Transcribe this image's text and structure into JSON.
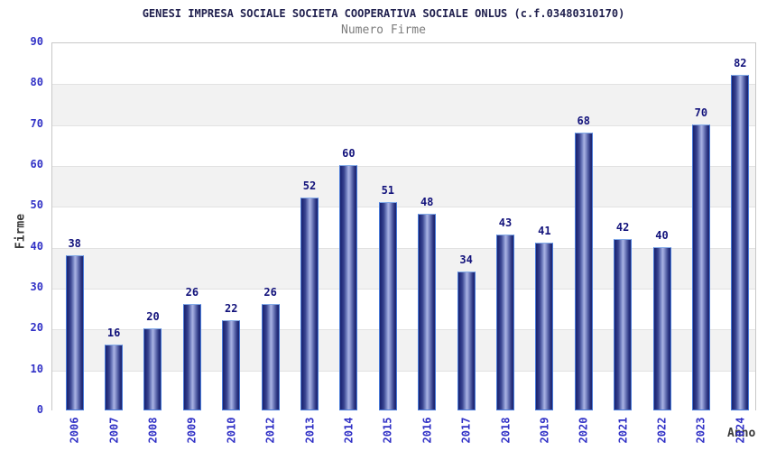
{
  "chart_data": {
    "type": "bar",
    "title": "GENESI IMPRESA SOCIALE SOCIETA COOPERATIVA SOCIALE ONLUS (c.f.03480310170)",
    "subtitle": "Numero Firme",
    "xlabel": "Anno",
    "ylabel": "Firme",
    "categories": [
      "2006",
      "2007",
      "2008",
      "2009",
      "2010",
      "2012",
      "2013",
      "2014",
      "2015",
      "2016",
      "2017",
      "2018",
      "2019",
      "2020",
      "2021",
      "2022",
      "2023",
      "2024"
    ],
    "values": [
      38,
      16,
      20,
      26,
      22,
      26,
      52,
      60,
      51,
      48,
      34,
      43,
      41,
      68,
      42,
      40,
      70,
      82
    ],
    "ylim": [
      0,
      90
    ],
    "ytick_step": 10,
    "grid": true,
    "legend_position": "none",
    "colors": {
      "bar_dark": "#1b246e",
      "bar_light": "#a8b2e2",
      "bar_border": "#4a7bd9",
      "value_label": "#12127b",
      "tick_label": "#3131c6",
      "title": "#20204e",
      "subtitle": "#7d7d7d",
      "axis_title": "#3a3a3a",
      "band_white": "#ffffff",
      "band_gray": "#f2f2f2",
      "gridline": "#e2e2e2",
      "plot_border": "#c8c8c8"
    }
  }
}
